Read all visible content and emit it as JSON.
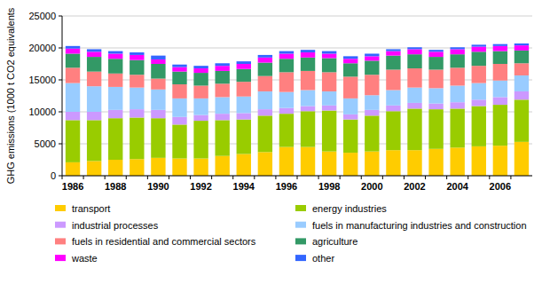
{
  "chart_data": {
    "type": "bar",
    "stacked": true,
    "grid": true,
    "legend": "bottom",
    "y_label": "GHG emissions (1000 t CO2 equivalents",
    "categories": [
      "1986",
      null,
      "1988",
      null,
      "1990",
      null,
      "1992",
      null,
      "1994",
      null,
      "1996",
      null,
      "1998",
      null,
      "2000",
      null,
      "2002",
      null,
      "2004",
      null,
      "2006",
      null
    ],
    "ylim": [
      0,
      25000
    ],
    "yticks": [
      0,
      5000,
      10000,
      15000,
      20000,
      25000
    ],
    "series": [
      {
        "name": "transport",
        "color": "#ffcc00",
        "values": [
          2100,
          2300,
          2500,
          2600,
          2800,
          2700,
          2700,
          3100,
          3400,
          3700,
          4500,
          4500,
          3800,
          3600,
          3800,
          4000,
          4000,
          4200,
          4400,
          4600,
          4700,
          5300
        ]
      },
      {
        "name": "energy industries",
        "color": "#99cc00",
        "values": [
          6600,
          6400,
          6500,
          6500,
          6200,
          5300,
          5900,
          5600,
          5400,
          5700,
          5200,
          5600,
          6400,
          5200,
          5600,
          6100,
          6500,
          6200,
          6100,
          6300,
          6400,
          6600
        ]
      },
      {
        "name": "industrial processes",
        "color": "#cc99ff",
        "values": [
          1300,
          1300,
          1300,
          1300,
          1300,
          1200,
          900,
          1000,
          1000,
          1000,
          900,
          800,
          800,
          800,
          900,
          900,
          900,
          900,
          1000,
          1000,
          1200,
          1300
        ]
      },
      {
        "name": "fuels in manufacturing industries and construction",
        "color": "#99ccff",
        "values": [
          4500,
          4000,
          3600,
          3400,
          3200,
          2900,
          2600,
          2600,
          2600,
          2800,
          2500,
          2500,
          2200,
          2500,
          2300,
          2400,
          2400,
          2400,
          2600,
          2600,
          2600,
          2500
        ]
      },
      {
        "name": "fuels in residential and commercial sectors",
        "color": "#ff8080",
        "values": [
          2400,
          2300,
          2100,
          2000,
          1700,
          2200,
          2000,
          2100,
          2300,
          2400,
          3100,
          3000,
          3000,
          3400,
          3200,
          3200,
          3000,
          2900,
          2800,
          2700,
          2600,
          1900
        ]
      },
      {
        "name": "agriculture",
        "color": "#339966",
        "values": [
          2200,
          2300,
          2300,
          2300,
          2300,
          2000,
          2000,
          2000,
          2000,
          2100,
          2100,
          2100,
          2200,
          2100,
          2200,
          2200,
          2200,
          2000,
          2100,
          2200,
          2000,
          2000
        ]
      },
      {
        "name": "waste",
        "color": "#ff00ff",
        "values": [
          800,
          800,
          800,
          800,
          700,
          700,
          700,
          800,
          800,
          800,
          800,
          800,
          700,
          700,
          700,
          700,
          800,
          800,
          800,
          800,
          800,
          800
        ]
      },
      {
        "name": "other",
        "color": "#3366ff",
        "values": [
          400,
          400,
          400,
          400,
          600,
          400,
          400,
          400,
          400,
          400,
          400,
          400,
          400,
          400,
          400,
          300,
          300,
          300,
          300,
          300,
          300,
          300
        ]
      }
    ]
  }
}
